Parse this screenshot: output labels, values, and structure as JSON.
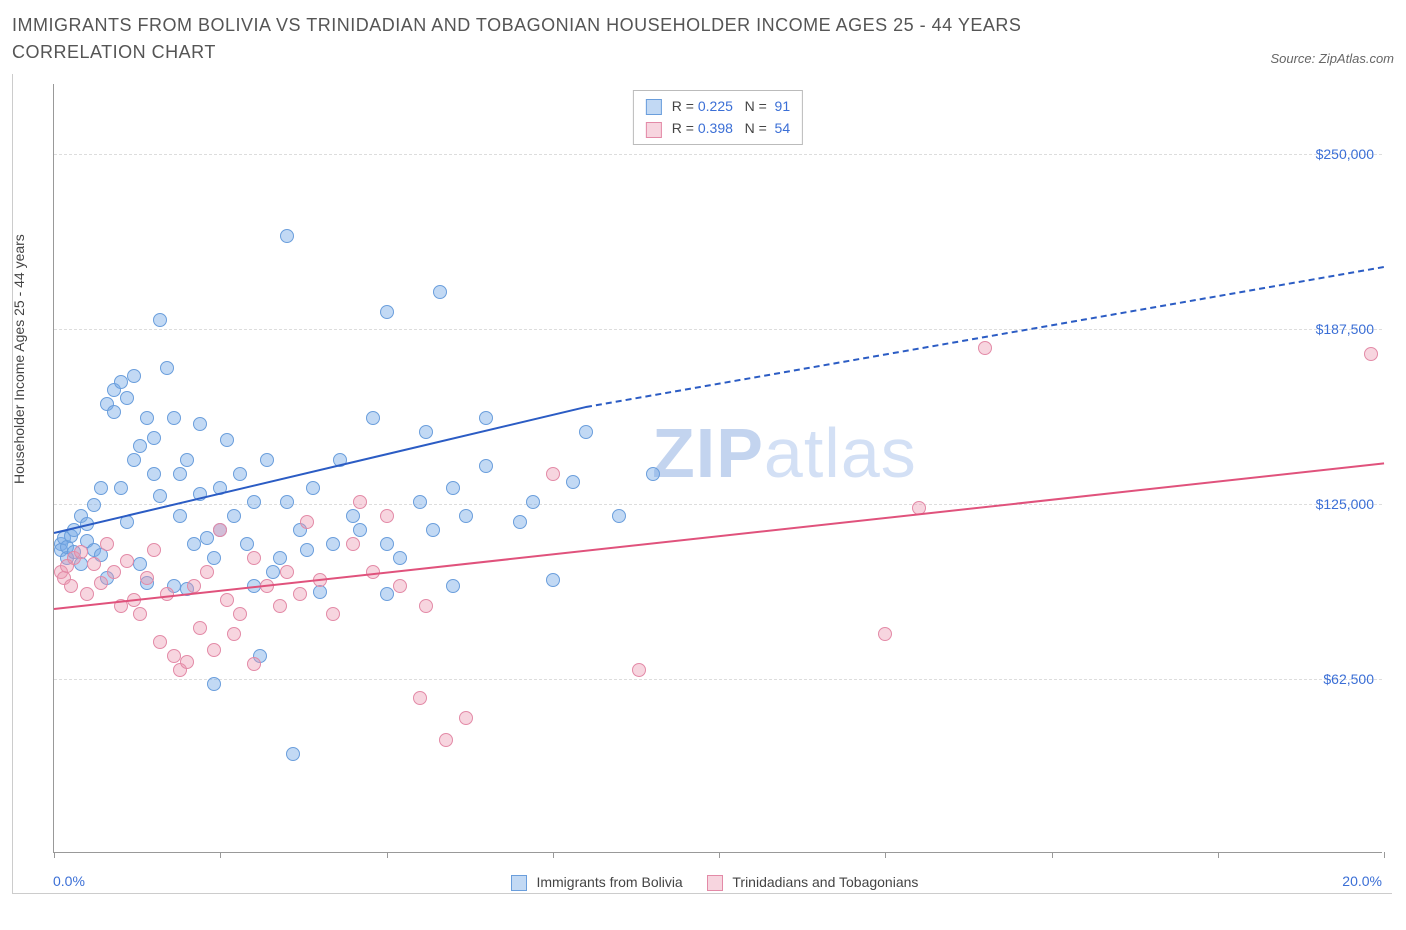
{
  "title": "IMMIGRANTS FROM BOLIVIA VS TRINIDADIAN AND TOBAGONIAN HOUSEHOLDER INCOME AGES 25 - 44 YEARS CORRELATION CHART",
  "source": "Source: ZipAtlas.com",
  "watermark_a": "ZIP",
  "watermark_b": "atlas",
  "chart": {
    "type": "scatter",
    "ylabel": "Householder Income Ages 25 - 44 years",
    "xmin_label": "0.0%",
    "xmax_label": "20.0%",
    "xlim": [
      0,
      20
    ],
    "ylim": [
      0,
      275000
    ],
    "yticks": [
      62500,
      125000,
      187500,
      250000
    ],
    "ytick_labels": [
      "$62,500",
      "$125,000",
      "$187,500",
      "$250,000"
    ],
    "xticks": [
      0,
      2.5,
      5,
      7.5,
      10,
      12.5,
      15,
      17.5,
      20
    ],
    "grid_color": "#dddddd",
    "axis_color": "#999999",
    "tick_label_color": "#3b6fd6",
    "background_color": "#ffffff",
    "point_radius": 7,
    "series": [
      {
        "name": "Immigrants from Bolivia",
        "color_fill": "rgba(120,170,230,0.45)",
        "color_stroke": "#6a9edc",
        "trend_color": "#2b5cc4",
        "R": "0.225",
        "N": "91",
        "trend": {
          "x0": 0,
          "y0": 115000,
          "x1_solid": 8,
          "y1_solid": 160000,
          "x1": 20,
          "y1": 210000
        },
        "points": [
          [
            0.1,
            110000
          ],
          [
            0.1,
            108000
          ],
          [
            0.15,
            112000
          ],
          [
            0.2,
            105000
          ],
          [
            0.2,
            109000
          ],
          [
            0.25,
            113000
          ],
          [
            0.3,
            107000
          ],
          [
            0.3,
            115000
          ],
          [
            0.4,
            120000
          ],
          [
            0.4,
            103000
          ],
          [
            0.5,
            117000
          ],
          [
            0.5,
            111000
          ],
          [
            0.6,
            124000
          ],
          [
            0.6,
            108000
          ],
          [
            0.7,
            130000
          ],
          [
            0.7,
            106000
          ],
          [
            0.8,
            160000
          ],
          [
            0.8,
            98000
          ],
          [
            0.9,
            165000
          ],
          [
            0.9,
            157000
          ],
          [
            1.0,
            130000
          ],
          [
            1.0,
            168000
          ],
          [
            1.1,
            162000
          ],
          [
            1.1,
            118000
          ],
          [
            1.2,
            170000
          ],
          [
            1.2,
            140000
          ],
          [
            1.3,
            145000
          ],
          [
            1.3,
            103000
          ],
          [
            1.4,
            96000
          ],
          [
            1.4,
            155000
          ],
          [
            1.5,
            148000
          ],
          [
            1.5,
            135000
          ],
          [
            1.6,
            190000
          ],
          [
            1.6,
            127000
          ],
          [
            1.7,
            173000
          ],
          [
            1.8,
            155000
          ],
          [
            1.8,
            95000
          ],
          [
            1.9,
            120000
          ],
          [
            1.9,
            135000
          ],
          [
            2.0,
            94000
          ],
          [
            2.0,
            140000
          ],
          [
            2.1,
            110000
          ],
          [
            2.2,
            128000
          ],
          [
            2.2,
            153000
          ],
          [
            2.3,
            112000
          ],
          [
            2.4,
            60000
          ],
          [
            2.4,
            105000
          ],
          [
            2.5,
            115000
          ],
          [
            2.5,
            130000
          ],
          [
            2.6,
            147000
          ],
          [
            2.7,
            120000
          ],
          [
            2.8,
            135000
          ],
          [
            2.9,
            110000
          ],
          [
            3.0,
            125000
          ],
          [
            3.0,
            95000
          ],
          [
            3.1,
            70000
          ],
          [
            3.2,
            140000
          ],
          [
            3.3,
            100000
          ],
          [
            3.4,
            105000
          ],
          [
            3.5,
            220000
          ],
          [
            3.5,
            125000
          ],
          [
            3.6,
            35000
          ],
          [
            3.7,
            115000
          ],
          [
            3.8,
            108000
          ],
          [
            3.9,
            130000
          ],
          [
            4.0,
            93000
          ],
          [
            4.2,
            110000
          ],
          [
            4.3,
            140000
          ],
          [
            4.5,
            120000
          ],
          [
            4.6,
            115000
          ],
          [
            4.8,
            155000
          ],
          [
            5.0,
            193000
          ],
          [
            5.0,
            92000
          ],
          [
            5.0,
            110000
          ],
          [
            5.2,
            105000
          ],
          [
            5.5,
            125000
          ],
          [
            5.6,
            150000
          ],
          [
            5.7,
            115000
          ],
          [
            5.8,
            200000
          ],
          [
            6.0,
            130000
          ],
          [
            6.0,
            95000
          ],
          [
            6.2,
            120000
          ],
          [
            6.5,
            138000
          ],
          [
            6.5,
            155000
          ],
          [
            7.0,
            118000
          ],
          [
            7.2,
            125000
          ],
          [
            7.5,
            97000
          ],
          [
            7.8,
            132000
          ],
          [
            8.0,
            150000
          ],
          [
            8.5,
            120000
          ],
          [
            9.0,
            135000
          ]
        ]
      },
      {
        "name": "Trinidadians and Tobagonians",
        "color_fill": "rgba(235,150,175,0.40)",
        "color_stroke": "#e38aa7",
        "trend_color": "#e0527c",
        "R": "0.398",
        "N": "54",
        "trend": {
          "x0": 0,
          "y0": 88000,
          "x1_solid": 20,
          "y1_solid": 140000,
          "x1": 20,
          "y1": 140000
        },
        "points": [
          [
            0.1,
            100000
          ],
          [
            0.15,
            98000
          ],
          [
            0.2,
            102000
          ],
          [
            0.25,
            95000
          ],
          [
            0.3,
            105000
          ],
          [
            0.4,
            107000
          ],
          [
            0.5,
            92000
          ],
          [
            0.6,
            103000
          ],
          [
            0.7,
            96000
          ],
          [
            0.8,
            110000
          ],
          [
            0.9,
            100000
          ],
          [
            1.0,
            88000
          ],
          [
            1.1,
            104000
          ],
          [
            1.2,
            90000
          ],
          [
            1.3,
            85000
          ],
          [
            1.4,
            98000
          ],
          [
            1.5,
            108000
          ],
          [
            1.6,
            75000
          ],
          [
            1.7,
            92000
          ],
          [
            1.8,
            70000
          ],
          [
            1.9,
            65000
          ],
          [
            2.0,
            68000
          ],
          [
            2.1,
            95000
          ],
          [
            2.2,
            80000
          ],
          [
            2.3,
            100000
          ],
          [
            2.4,
            72000
          ],
          [
            2.5,
            115000
          ],
          [
            2.6,
            90000
          ],
          [
            2.7,
            78000
          ],
          [
            2.8,
            85000
          ],
          [
            3.0,
            105000
          ],
          [
            3.0,
            67000
          ],
          [
            3.2,
            95000
          ],
          [
            3.4,
            88000
          ],
          [
            3.5,
            100000
          ],
          [
            3.7,
            92000
          ],
          [
            3.8,
            118000
          ],
          [
            4.0,
            97000
          ],
          [
            4.2,
            85000
          ],
          [
            4.5,
            110000
          ],
          [
            4.6,
            125000
          ],
          [
            4.8,
            100000
          ],
          [
            5.0,
            120000
          ],
          [
            5.2,
            95000
          ],
          [
            5.5,
            55000
          ],
          [
            5.6,
            88000
          ],
          [
            5.9,
            40000
          ],
          [
            6.2,
            48000
          ],
          [
            7.5,
            135000
          ],
          [
            8.8,
            65000
          ],
          [
            12.5,
            78000
          ],
          [
            13.0,
            123000
          ],
          [
            14.0,
            180000
          ],
          [
            19.8,
            178000
          ]
        ]
      }
    ],
    "stats_labels": {
      "R": "R =",
      "N": "N ="
    },
    "bottom_legend": [
      {
        "label": "Immigrants from Bolivia",
        "fill": "rgba(120,170,230,0.45)",
        "stroke": "#6a9edc"
      },
      {
        "label": "Trinidadians and Tobagonians",
        "fill": "rgba(235,150,175,0.40)",
        "stroke": "#e38aa7"
      }
    ]
  }
}
